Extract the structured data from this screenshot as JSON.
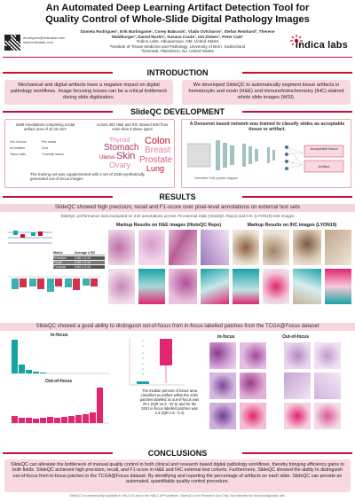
{
  "title": [
    "An Automated Deep Learning Artifact Detection Tool for",
    "Quality Control of Whole-Slide Digital Pathology Images"
  ],
  "authors": "Daniela Rodrigues¹, Erik Burlingame¹, Corey Babcock¹, Vlado Ovtcharov¹, Stefan Reinhard², Therese Waldburger³, Daniel Martin³, Susana Couto³, Inti Zlobec², Peter Caie¹",
  "affiliations": [
    "¹Indica Labs, Albuquerque, NM, United States",
    "²Institute of Tissue Medicine and Pathology, University of Bern, Switzerland",
    "³Genmab, Plainsboro, NJ, United States"
  ],
  "contact": [
    "drodrigues@indicalab.com",
    "www.indicalab.com"
  ],
  "logo": "indica labs",
  "sections": {
    "introduction": "INTRODUCTION",
    "development": "SlideQC DEVELOPMENT",
    "results": "RESULTS",
    "conclusions": "CONCLUSIONS"
  },
  "intro": {
    "left": "Mechanical and digital artifacts have a negative impact on digital pathology workflows. Image focusing issues can be a critical bottleneck during slide digitization.",
    "right": "We developed SlideQC to automatically segment tissue artifacts in hematoxylin and eosin (H&E) and immunohistochemistry (IHC) stained whole slide images (WSI)."
  },
  "development": {
    "annotations": "2469 Annotations comprising a total artifact area of 32.15 mm²",
    "slides": "Across 302 H&E and IHC stained WSI from more than 8 tissue types",
    "artifact_legend": [
      "Out-of-focus",
      "Pen marks",
      "Air bubbles",
      "Dust",
      "Tissue folds",
      "Coverslip issues"
    ],
    "tissues": [
      "Thyroid",
      "Colon",
      "Stomach",
      "Breast",
      "Uterus",
      "Skin",
      "Prostate",
      "Ovary",
      "Lung"
    ],
    "synthetic": "The training set was supplemented with a set of 2048 synthetically generated out-of-focus images",
    "network": "A Densenet based network was trained to classify slides as acceptable tissue or artifact.",
    "net_labels": [
      "Acceptable tissue",
      "Artifact"
    ],
    "net_caption": "DenseNet CNN pipeline diagram"
  },
  "results": {
    "summary": "SlideQC showed high precision, recall and F1-score over pixel-level annotations on external test sets",
    "subtitle": "SlideQC performance was evaluated on 432 annotations across 79 external H&E (HistoQC Repo) and IHC (LYON19) test images",
    "table": {
      "header": [
        "Metric",
        "Average ± SD"
      ],
      "rows": [
        [
          "Precision",
          "0.88 ± 0.10"
        ],
        [
          "Recall",
          "0.90 ± 0.10"
        ],
        [
          "F1-score",
          "0.84 ± 0.10"
        ]
      ]
    },
    "he_title": "Markup Results on H&E images (HistoQC Repo)",
    "ihc_title": "Markup Results on IHC images (LYON19)",
    "focus_banner": "SlideQC showed a good ability to distinguish out-of-focus from in-focus labelled patches from the TCGA@Focus dataset",
    "in_focus": "In-focus",
    "out_focus": "Out-of-focus",
    "focus_text": "The median percent of tissue area classified as artifact within the 2451 patches labelled as out-of-focus was 76.1 (IQR 41.3 - 97.6) and for the 2451 in-focus labelled patches was 2.3 (IQR 0.6 - 6.4)",
    "in_focus_right": "In-focus",
    "out_focus_right": "Out-of-focus"
  },
  "conclusion": "SlideQC can alleviate the bottleneck of manual quality control in both clinical and research based digital pathology workflows, thereby bringing efficiency gains to both fields. SlideQC achieved high precision, recall, and F1-score in H&E and IHC external test cohorts. Furthermore, SlideQC showed the ability to distinguish out-of-focus from in-focus patches in the TCGA@Focus dataset. By identifying and reporting the percentage of artifacts on each slide, SlideQC can provide an automated, quantifiable quality control procedure.",
  "footer": "SlideQC is commercially available in HALO AI and in the HALO AP® platform. SlideQC is for Research Use Only. Not intended for clinical diagnostic use.",
  "colors": {
    "accent": "#c8102e",
    "pink": "#f7d9df",
    "teal": "#1aa3a6",
    "magenta": "#e0266f"
  }
}
